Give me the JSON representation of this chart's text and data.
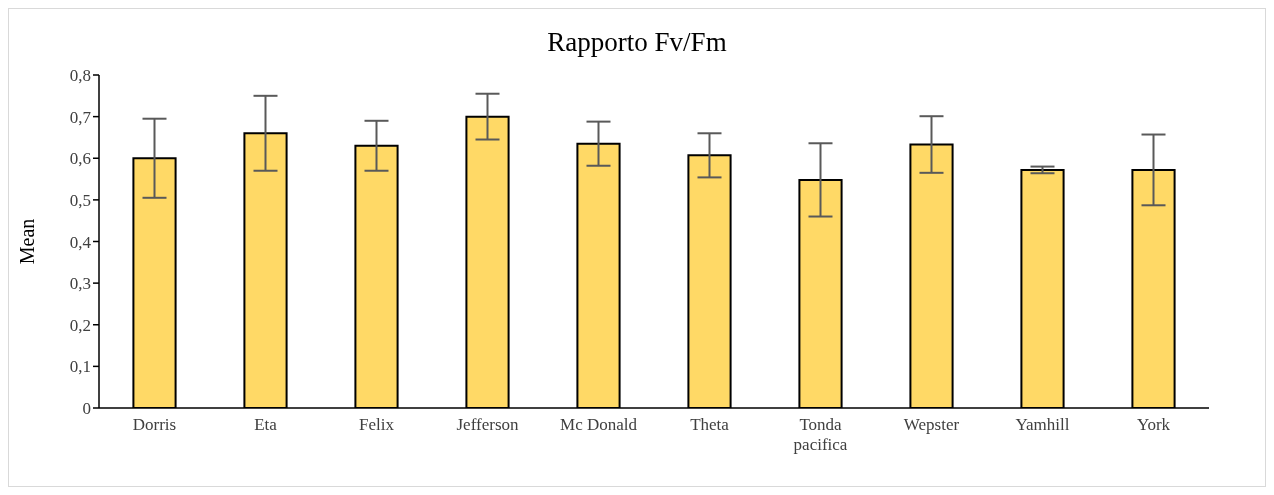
{
  "chart_data": {
    "type": "bar",
    "title": "Rapporto  Fv/Fm",
    "ylabel": "Mean",
    "categories": [
      "Dorris",
      "Eta",
      "Felix",
      "Jefferson",
      "Mc Donald",
      "Theta",
      "Tonda pacifica",
      "Wepster",
      "Yamhill",
      "York"
    ],
    "values": [
      0.6,
      0.66,
      0.63,
      0.7,
      0.635,
      0.607,
      0.548,
      0.633,
      0.572,
      0.572
    ],
    "errors": [
      0.095,
      0.09,
      0.06,
      0.055,
      0.053,
      0.053,
      0.088,
      0.068,
      0.008,
      0.085
    ],
    "color": "#ffd966",
    "ylim": [
      0,
      0.8
    ],
    "yticks": [
      0,
      {
        "value": 0.1,
        "label": "0,1"
      },
      {
        "value": 0.2,
        "label": "0,2"
      },
      {
        "value": 0.3,
        "label": "0,3"
      },
      {
        "value": 0.4,
        "label": "0,4"
      },
      {
        "value": 0.5,
        "label": "0,5"
      },
      {
        "value": 0.6,
        "label": "0,6"
      },
      {
        "value": 0.7,
        "label": "0,7"
      },
      {
        "value": 0.8,
        "label": "0,8"
      }
    ],
    "grid": false,
    "legend": false
  }
}
